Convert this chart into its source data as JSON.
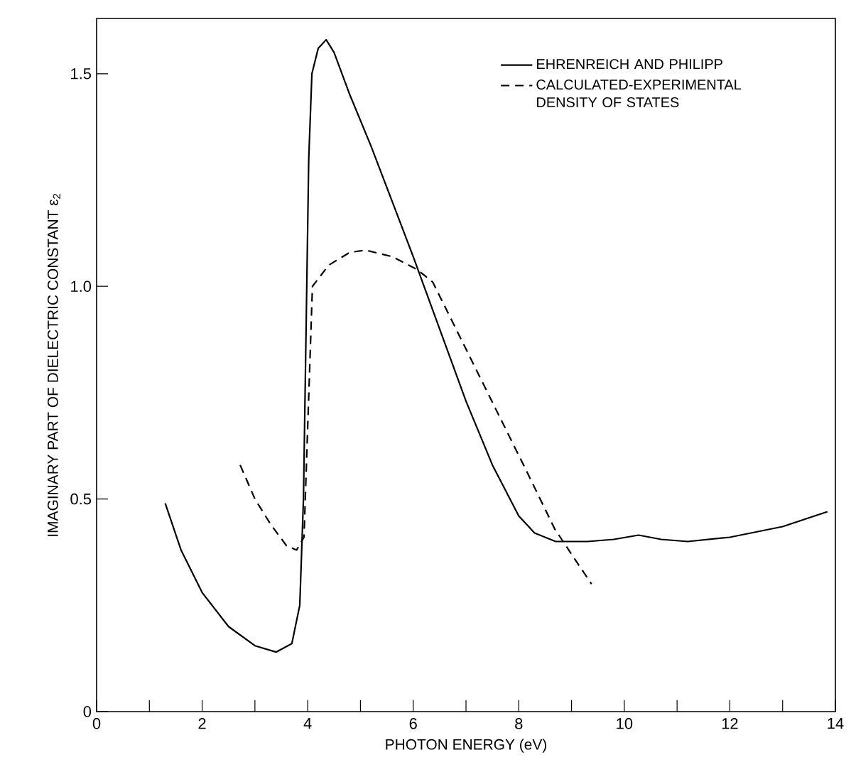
{
  "chart_data": {
    "type": "line",
    "xlabel": "PHOTON ENERGY (eV)",
    "ylabel": "IMAGINARY PART OF DIELECTRIC CONSTANT ε$_{2}$",
    "xlim": [
      0,
      14
    ],
    "ylim": [
      0,
      1.63
    ],
    "xticks": [
      0,
      {
        "value": 1,
        "label": null
      },
      2,
      {
        "value": 3,
        "label": null
      },
      4,
      {
        "value": 5,
        "label": null
      },
      6,
      {
        "value": 7,
        "label": null
      },
      8,
      {
        "value": 9,
        "label": null
      },
      10,
      {
        "value": 11,
        "label": null
      },
      12,
      {
        "value": 13,
        "label": null
      },
      14
    ],
    "yticks": [
      0,
      {
        "value": 0.5,
        "label": "0.5"
      },
      {
        "value": 1,
        "label": "1.0"
      },
      {
        "value": 1.5,
        "label": "1.5"
      }
    ],
    "legend": "top right",
    "grid": false,
    "series": [
      {
        "name": "EHRENREICH AND PHILIPP",
        "color": "#000000",
        "line_style": "solid",
        "x": [
          1.3,
          1.6,
          2.0,
          2.5,
          3.0,
          3.4,
          3.7,
          3.85,
          3.92,
          3.97,
          4.02,
          4.08,
          4.2,
          4.35,
          4.5,
          4.8,
          5.2,
          5.6,
          6.0,
          6.5,
          7.0,
          7.5,
          8.0,
          8.3,
          8.7,
          9.3,
          9.8,
          10.27,
          10.7,
          11.2,
          12.0,
          13.0,
          13.85
        ],
        "values": [
          0.49,
          0.38,
          0.28,
          0.2,
          0.155,
          0.14,
          0.16,
          0.25,
          0.5,
          0.9,
          1.3,
          1.5,
          1.56,
          1.58,
          1.55,
          1.45,
          1.33,
          1.2,
          1.07,
          0.9,
          0.73,
          0.58,
          0.46,
          0.42,
          0.4,
          0.4,
          0.405,
          0.415,
          0.405,
          0.4,
          0.41,
          0.435,
          0.47
        ]
      },
      {
        "name": "CALCULATED-EXPERIMENTAL DENSITY OF STATES",
        "color": "#000000",
        "line_style": "dashed",
        "x": [
          2.72,
          3.0,
          3.3,
          3.6,
          3.79,
          3.93,
          4.09,
          4.4,
          4.8,
          5.1,
          5.6,
          6.07,
          6.37,
          6.93,
          7.57,
          8.13,
          8.68,
          9.0,
          9.38
        ],
        "values": [
          0.58,
          0.5,
          0.44,
          0.39,
          0.38,
          0.41,
          1.0,
          1.05,
          1.08,
          1.085,
          1.07,
          1.04,
          1.01,
          0.87,
          0.71,
          0.57,
          0.43,
          0.37,
          0.3
        ]
      }
    ]
  }
}
